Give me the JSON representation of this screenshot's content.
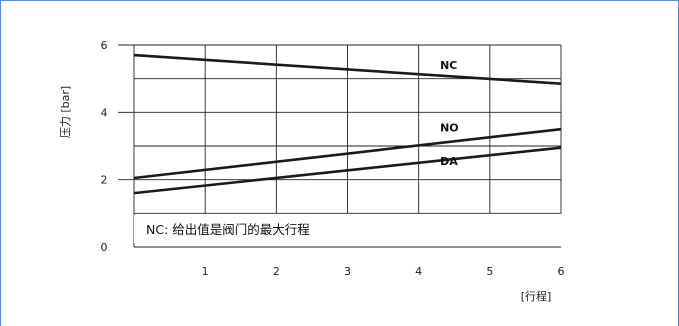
{
  "chart_data": {
    "type": "line",
    "xlabel": "[行程]",
    "ylabel": "压力 [bar]",
    "xlim": [
      0,
      6
    ],
    "ylim": [
      0,
      6
    ],
    "x_ticks": [
      1,
      2,
      3,
      4,
      5,
      6
    ],
    "y_ticks": [
      0,
      2,
      4,
      6
    ],
    "grid": true,
    "series": [
      {
        "name": "NC",
        "x": [
          0,
          6
        ],
        "y": [
          5.7,
          4.85
        ],
        "color": "#1a1a1a"
      },
      {
        "name": "NO",
        "x": [
          0,
          6
        ],
        "y": [
          2.05,
          3.5
        ],
        "color": "#1a1a1a"
      },
      {
        "name": "DA",
        "x": [
          0,
          6
        ],
        "y": [
          1.6,
          2.95
        ],
        "color": "#1a1a1a"
      }
    ],
    "annotation": "NC: 给出值是阀门的最大行程"
  },
  "colors": {
    "frame": "#5b8ccf",
    "grid": "#222222",
    "line": "#1a1a1a"
  }
}
